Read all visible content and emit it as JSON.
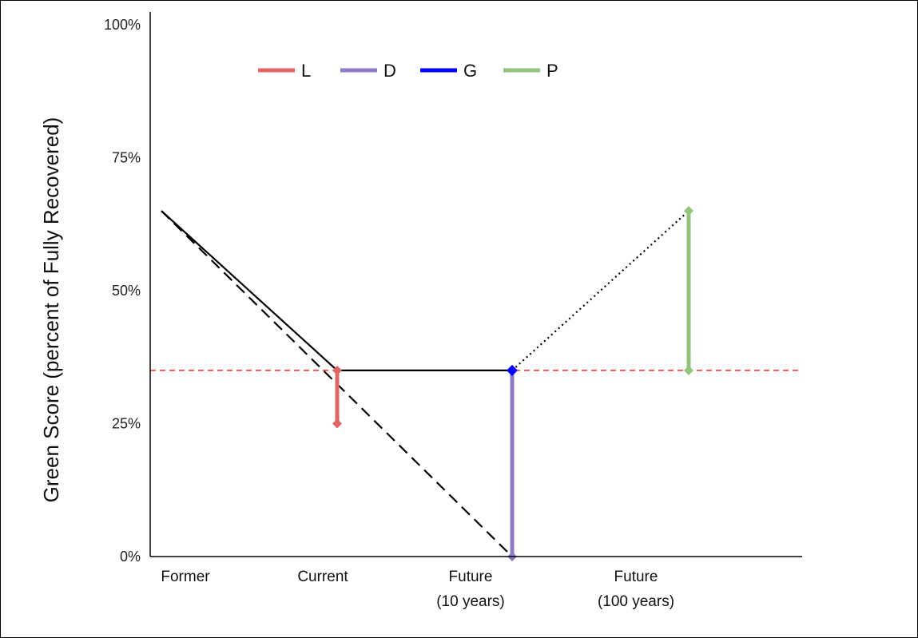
{
  "chart_data": {
    "type": "line",
    "ylabel": "Green Score (percent of Fully Recovered)",
    "xlabel": "",
    "ylim": [
      0,
      100
    ],
    "yticks": [
      "0%",
      "25%",
      "50%",
      "75%",
      "100%"
    ],
    "ytick_values": [
      0,
      25,
      50,
      75,
      100
    ],
    "categories": [
      {
        "line1": "Former",
        "line2": ""
      },
      {
        "line1": "Current",
        "line2": ""
      },
      {
        "line1": "Future",
        "line2": "(10 years)"
      },
      {
        "line1": "Future",
        "line2": "(100 years)"
      }
    ],
    "grid": false,
    "legend_placement": "top-left",
    "legend": [
      {
        "label": "L",
        "color": "#e06666"
      },
      {
        "label": "D",
        "color": "#8e7cc3"
      },
      {
        "label": "G",
        "color": "#0000ff"
      },
      {
        "label": "P",
        "color": "#93c47d"
      }
    ],
    "reference_line": {
      "y": 35,
      "color": "#ff0000",
      "style": "dashed"
    },
    "lines": [
      {
        "style": "solid",
        "color": "#000000",
        "points": [
          [
            0,
            65
          ],
          [
            1,
            35
          ],
          [
            2,
            35
          ]
        ]
      },
      {
        "style": "dashed",
        "color": "#000000",
        "points": [
          [
            0,
            65
          ],
          [
            2,
            0
          ]
        ]
      },
      {
        "style": "dotted",
        "color": "#000000",
        "points": [
          [
            2,
            35
          ],
          [
            3,
            65
          ]
        ]
      }
    ],
    "intervals": [
      {
        "label": "L",
        "x": 1,
        "y_from": 25,
        "y_to": 35,
        "color": "#e06666"
      },
      {
        "label": "D",
        "x": 2,
        "y_from": 0,
        "y_to": 35,
        "color": "#8e7cc3"
      },
      {
        "label": "G",
        "x": 2,
        "y_from": 35,
        "y_to": 35,
        "color": "#0000ff"
      },
      {
        "label": "P",
        "x": 3,
        "y_from": 35,
        "y_to": 65,
        "color": "#93c47d"
      }
    ]
  }
}
